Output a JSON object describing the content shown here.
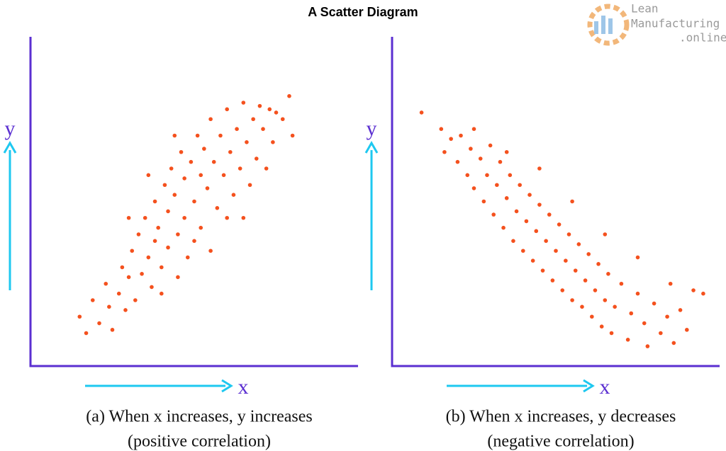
{
  "title": "A Scatter Diagram",
  "logo": [
    "Lean",
    "Manufacturing",
    ".online"
  ],
  "chart_data": [
    {
      "type": "scatter",
      "x_label": "x",
      "y_label": "y",
      "caption": [
        "(a) When x increases, y increases",
        "(positive correlation)"
      ],
      "color": "#f4511e",
      "xlim": [
        0,
        100
      ],
      "ylim": [
        0,
        100
      ],
      "x": [
        15,
        17,
        19,
        21,
        23,
        24,
        25,
        27,
        28,
        29,
        30,
        31,
        32,
        33,
        34,
        35,
        36,
        37,
        38,
        38,
        39,
        40,
        41,
        42,
        42,
        43,
        44,
        45,
        46,
        47,
        47,
        48,
        49,
        50,
        51,
        52,
        52,
        53,
        54,
        55,
        56,
        57,
        58,
        59,
        60,
        61,
        62,
        63,
        64,
        65,
        66,
        67,
        68,
        69,
        70,
        71,
        72,
        73,
        74,
        75,
        77,
        79,
        80,
        50,
        45,
        55,
        40,
        60,
        36,
        44,
        30,
        65
      ],
      "y": [
        15,
        10,
        20,
        13,
        25,
        18,
        11,
        22,
        30,
        17,
        27,
        35,
        20,
        40,
        28,
        45,
        33,
        24,
        50,
        38,
        42,
        30,
        55,
        47,
        36,
        60,
        52,
        40,
        65,
        57,
        45,
        33,
        62,
        50,
        70,
        58,
        42,
        66,
        54,
        75,
        62,
        48,
        70,
        58,
        78,
        65,
        52,
        72,
        60,
        80,
        68,
        55,
        75,
        63,
        79,
        72,
        60,
        78,
        68,
        77,
        75,
        82,
        70,
        38,
        27,
        35,
        22,
        45,
        58,
        70,
        45,
        45
      ]
    },
    {
      "type": "scatter",
      "x_label": "x",
      "y_label": "y",
      "caption": [
        "(b) When x increases, y decreases",
        "(negative correlation)"
      ],
      "color": "#f4511e",
      "xlim": [
        0,
        100
      ],
      "ylim": [
        0,
        100
      ],
      "x": [
        9,
        15,
        16,
        18,
        20,
        21,
        23,
        24,
        25,
        27,
        28,
        29,
        30,
        31,
        32,
        33,
        34,
        35,
        36,
        37,
        38,
        39,
        40,
        41,
        42,
        43,
        44,
        45,
        46,
        47,
        48,
        49,
        50,
        51,
        52,
        53,
        54,
        55,
        56,
        57,
        58,
        59,
        60,
        61,
        62,
        63,
        64,
        65,
        66,
        67,
        68,
        70,
        72,
        73,
        75,
        77,
        78,
        80,
        82,
        84,
        86,
        88,
        90,
        92,
        95,
        85,
        75,
        65,
        55,
        45,
        35,
        25
      ],
      "y": [
        77,
        72,
        65,
        69,
        62,
        70,
        58,
        66,
        54,
        63,
        50,
        58,
        67,
        46,
        55,
        62,
        42,
        51,
        58,
        38,
        47,
        55,
        35,
        44,
        52,
        32,
        41,
        49,
        29,
        38,
        46,
        26,
        35,
        43,
        23,
        32,
        40,
        20,
        29,
        37,
        18,
        26,
        34,
        15,
        23,
        31,
        12,
        20,
        28,
        10,
        18,
        25,
        8,
        16,
        22,
        13,
        6,
        19,
        10,
        15,
        7,
        17,
        11,
        23,
        22,
        25,
        33,
        40,
        50,
        60,
        65,
        72
      ]
    }
  ]
}
